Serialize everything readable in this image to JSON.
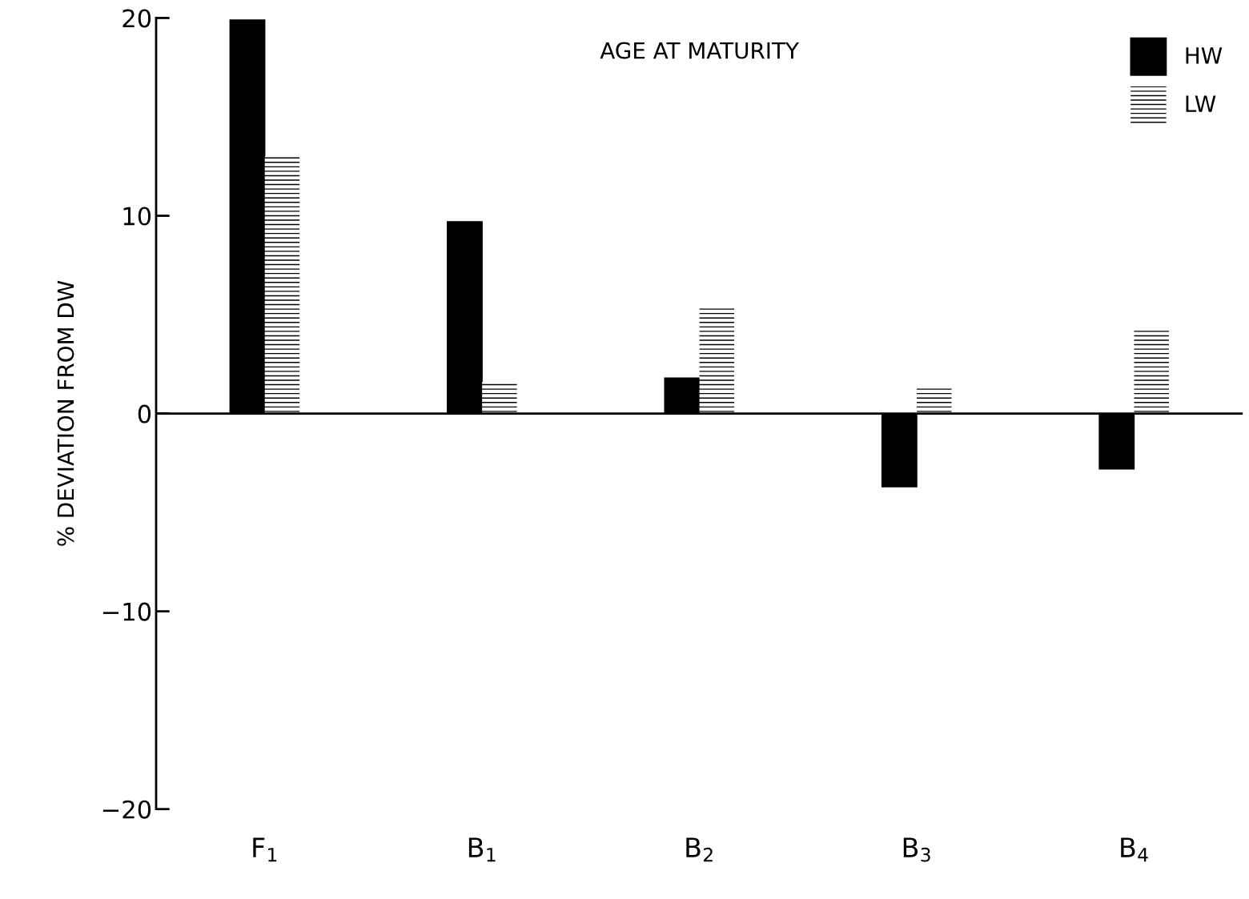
{
  "chart_data": {
    "type": "bar",
    "title": "AGE AT MATURITY",
    "ylabel": "% DEVIATION FROM DW",
    "categories": [
      "F$_{1}$",
      "B$_{1}$",
      "B$_{2}$",
      "B$_{3}$",
      "B$_{4}$"
    ],
    "series": [
      {
        "name": "HW",
        "color": "#000000",
        "values": [
          19.9,
          9.7,
          1.8,
          -3.7,
          -2.8
        ]
      },
      {
        "name": "LW",
        "color": "#000000",
        "values": [
          13.0,
          1.6,
          5.4,
          1.3,
          4.2
        ]
      }
    ],
    "ylim": [
      -20,
      20
    ],
    "yticks": [
      20,
      10,
      0,
      {
        "value": -10,
        "label": "−10"
      },
      {
        "value": -20,
        "label": "−20"
      }
    ],
    "ref_lines": [
      {
        "axis": "y",
        "value": 0,
        "color": "#000000"
      }
    ],
    "grid": false,
    "legend": "top right"
  }
}
